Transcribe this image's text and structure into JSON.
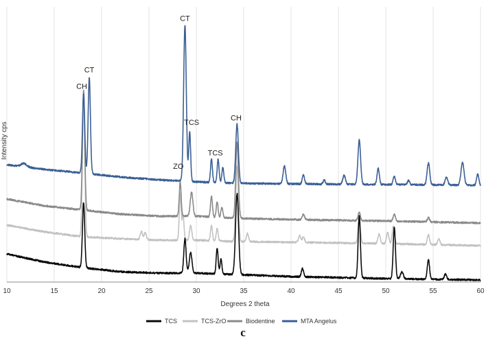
{
  "chart_data": {
    "type": "line",
    "title": "",
    "xlabel": "Degrees 2 theta",
    "ylabel": "Intensity cps",
    "xlim": [
      10,
      60
    ],
    "xticks": [
      10,
      15,
      20,
      25,
      30,
      35,
      40,
      45,
      50,
      55,
      60
    ],
    "grid": "vertical",
    "legend_position": "bottom",
    "panel_label": "c",
    "series": [
      {
        "name": "TCS",
        "color": "#0a0a0a",
        "baseline": [
          [
            10,
            370
          ],
          [
            14,
            382
          ],
          [
            18,
            390
          ],
          [
            22,
            396
          ],
          [
            26,
            398
          ],
          [
            30,
            398
          ],
          [
            34,
            400
          ],
          [
            40,
            403
          ],
          [
            50,
            406
          ],
          [
            60,
            408
          ]
        ],
        "peaks": [
          [
            18.1,
            95,
            0.12
          ],
          [
            28.8,
            50,
            0.12
          ],
          [
            29.4,
            30,
            0.14
          ],
          [
            32.2,
            38,
            0.1
          ],
          [
            32.6,
            22,
            0.1
          ],
          [
            34.3,
            118,
            0.16
          ],
          [
            41.2,
            12,
            0.12
          ],
          [
            47.2,
            90,
            0.12
          ],
          [
            50.9,
            75,
            0.12
          ],
          [
            51.7,
            10,
            0.15
          ],
          [
            54.5,
            28,
            0.12
          ],
          [
            56.3,
            8,
            0.12
          ]
        ]
      },
      {
        "name": "TCS-ZrO",
        "color": "#c2c2c2",
        "baseline": [
          [
            10,
            328
          ],
          [
            14,
            338
          ],
          [
            18,
            345
          ],
          [
            22,
            348
          ],
          [
            26,
            350
          ],
          [
            30,
            350
          ],
          [
            34,
            352
          ],
          [
            40,
            353
          ],
          [
            50,
            355
          ],
          [
            60,
            358
          ]
        ],
        "peaks": [
          [
            18.1,
            210,
            0.12
          ],
          [
            24.2,
            12,
            0.12
          ],
          [
            24.6,
            10,
            0.12
          ],
          [
            28.3,
            68,
            0.1
          ],
          [
            28.6,
            35,
            0.1
          ],
          [
            29.4,
            22,
            0.12
          ],
          [
            31.6,
            22,
            0.1
          ],
          [
            32.2,
            18,
            0.1
          ],
          [
            34.3,
            110,
            0.14
          ],
          [
            35.4,
            12,
            0.12
          ],
          [
            40.9,
            10,
            0.12
          ],
          [
            41.3,
            8,
            0.12
          ],
          [
            47.2,
            40,
            0.12
          ],
          [
            49.3,
            14,
            0.12
          ],
          [
            50.2,
            16,
            0.12
          ],
          [
            50.8,
            26,
            0.12
          ],
          [
            54.5,
            14,
            0.12
          ],
          [
            55.6,
            8,
            0.12
          ]
        ]
      },
      {
        "name": "Biodentine",
        "color": "#8a8a8a",
        "baseline": [
          [
            10,
            290
          ],
          [
            14,
            300
          ],
          [
            18,
            306
          ],
          [
            22,
            312
          ],
          [
            26,
            315
          ],
          [
            30,
            315
          ],
          [
            34,
            318
          ],
          [
            40,
            320
          ],
          [
            50,
            322
          ],
          [
            60,
            325
          ]
        ],
        "peaks": [
          [
            18.1,
            175,
            0.12
          ],
          [
            28.3,
            50,
            0.1
          ],
          [
            29.5,
            35,
            0.14
          ],
          [
            31.6,
            30,
            0.1
          ],
          [
            32.2,
            22,
            0.1
          ],
          [
            32.7,
            15,
            0.1
          ],
          [
            34.3,
            110,
            0.14
          ],
          [
            41.3,
            8,
            0.12
          ],
          [
            47.2,
            12,
            0.12
          ],
          [
            50.9,
            10,
            0.12
          ],
          [
            54.5,
            6,
            0.12
          ]
        ]
      },
      {
        "name": "MTA Angelus",
        "color": "#3a5f95",
        "baseline": [
          [
            10,
            240
          ],
          [
            14,
            247
          ],
          [
            18,
            252
          ],
          [
            22,
            258
          ],
          [
            26,
            262
          ],
          [
            30,
            265
          ],
          [
            34,
            267
          ],
          [
            40,
            268
          ],
          [
            50,
            269
          ],
          [
            60,
            270
          ]
        ],
        "peaks": [
          [
            11.8,
            5,
            0.3
          ],
          [
            18.1,
            115,
            0.12
          ],
          [
            18.7,
            140,
            0.12
          ],
          [
            28.8,
            228,
            0.14
          ],
          [
            29.3,
            72,
            0.1
          ],
          [
            31.6,
            34,
            0.1
          ],
          [
            32.3,
            34,
            0.1
          ],
          [
            32.8,
            22,
            0.1
          ],
          [
            34.3,
            86,
            0.14
          ],
          [
            39.3,
            26,
            0.14
          ],
          [
            41.3,
            13,
            0.12
          ],
          [
            43.5,
            6,
            0.12
          ],
          [
            45.6,
            13,
            0.14
          ],
          [
            47.2,
            65,
            0.14
          ],
          [
            49.2,
            24,
            0.12
          ],
          [
            50.9,
            12,
            0.12
          ],
          [
            52.4,
            6,
            0.12
          ],
          [
            54.5,
            32,
            0.14
          ],
          [
            56.4,
            11,
            0.14
          ],
          [
            58.1,
            33,
            0.16
          ],
          [
            59.7,
            16,
            0.12
          ]
        ]
      }
    ],
    "annotations": [
      {
        "text": "CT",
        "x": 28.8,
        "series": "MTA Angelus"
      },
      {
        "text": "CH",
        "x": 17.9,
        "series": "MTA Angelus"
      },
      {
        "text": "CT",
        "x": 18.7,
        "series": "MTA Angelus"
      },
      {
        "text": "ZO",
        "x": 28.1,
        "series": "Biodentine"
      },
      {
        "text": "TCS",
        "x": 29.5,
        "series": "MTA Angelus"
      },
      {
        "text": "TCS",
        "x": 32.0,
        "series": "MTA Angelus"
      },
      {
        "text": "CH",
        "x": 34.2,
        "series": "MTA Angelus"
      }
    ]
  }
}
